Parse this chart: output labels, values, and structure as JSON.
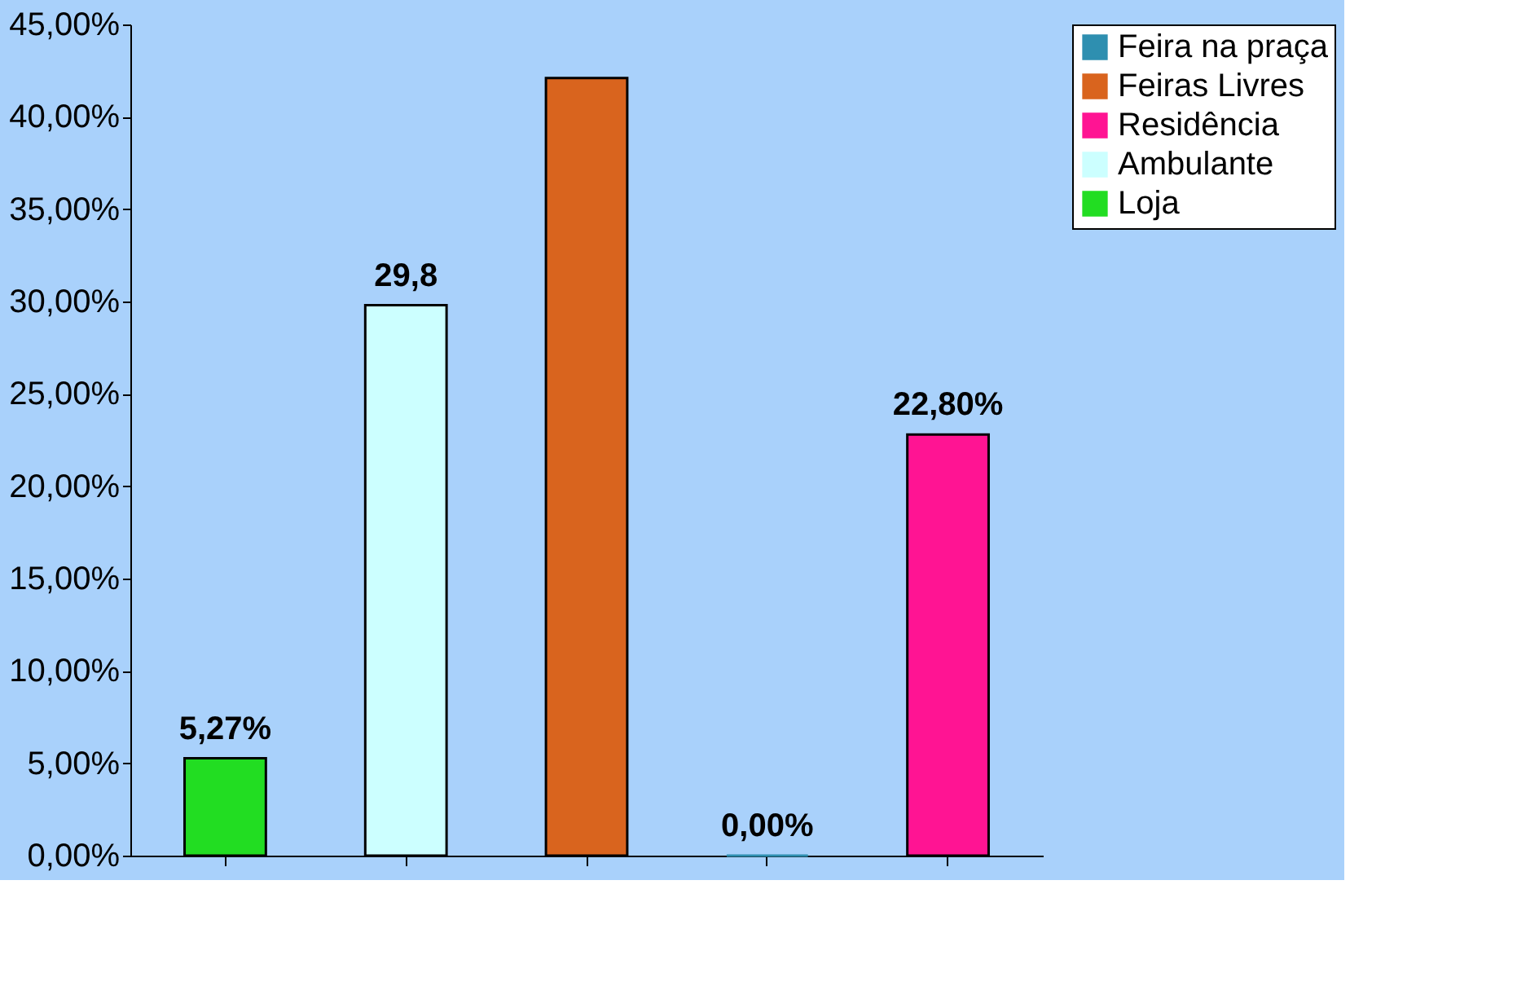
{
  "chart_data": {
    "type": "bar",
    "categories": [
      null,
      null,
      null,
      null,
      null
    ],
    "series": [
      {
        "name": "Feira na praça",
        "color": "#2e8fb0",
        "values": [
          null,
          null,
          null,
          0,
          null
        ],
        "value_labels": [
          null,
          null,
          null,
          "0,00%",
          null
        ]
      },
      {
        "name": "Feiras Livres",
        "color": "#d9641e",
        "values": [
          null,
          null,
          42.1,
          null,
          null
        ],
        "value_labels": [
          null,
          null,
          null,
          null,
          null
        ]
      },
      {
        "name": "Residência",
        "color": "#ff1493",
        "values": [
          null,
          null,
          null,
          null,
          22.8
        ],
        "value_labels": [
          null,
          null,
          null,
          null,
          "22,80%"
        ]
      },
      {
        "name": "Ambulante",
        "color": "#ccffff",
        "values": [
          null,
          29.8,
          null,
          null,
          null
        ],
        "value_labels": [
          null,
          "29,8",
          null,
          null,
          null
        ]
      },
      {
        "name": "Loja",
        "color": "#22dd22",
        "values": [
          5.27,
          null,
          null,
          null,
          null
        ],
        "value_labels": [
          "5,27%",
          null,
          null,
          null,
          null
        ]
      }
    ],
    "ylim": [
      0,
      45
    ],
    "yticks": [
      {
        "value": 0,
        "label": "0,00%"
      },
      {
        "value": 5,
        "label": "5,00%"
      },
      {
        "value": 10,
        "label": "10,00%"
      },
      {
        "value": 15,
        "label": "15,00%"
      },
      {
        "value": 20,
        "label": "20,00%"
      },
      {
        "value": 25,
        "label": "25,00%"
      },
      {
        "value": 30,
        "label": "30,00%"
      },
      {
        "value": 35,
        "label": "35,00%"
      },
      {
        "value": 40,
        "label": "40,00%"
      },
      {
        "value": 45,
        "label": "45,00%"
      }
    ],
    "grid": false,
    "legend": "right",
    "tick_labels": "y"
  }
}
